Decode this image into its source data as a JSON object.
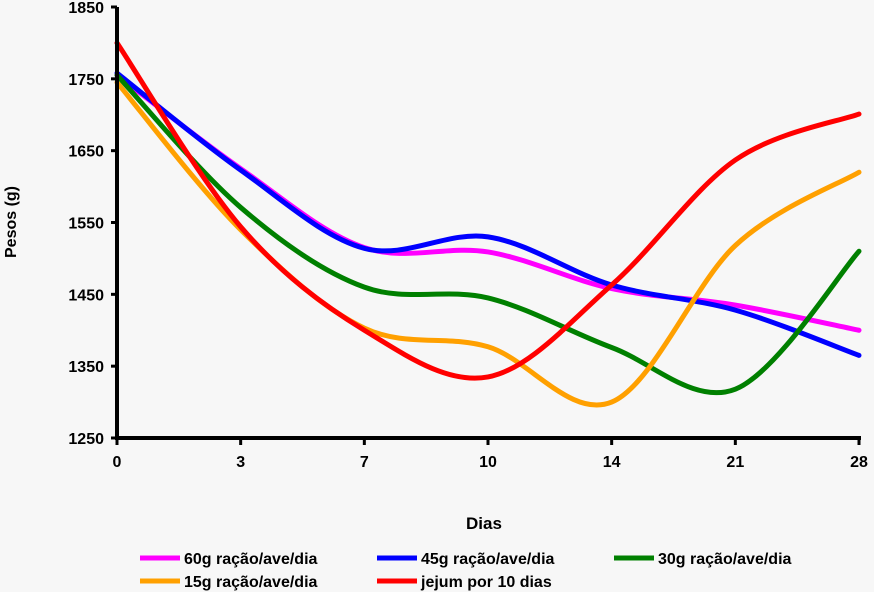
{
  "chart_data": {
    "type": "line",
    "title": "",
    "xlabel": "Dias",
    "ylabel": "Pesos (g)",
    "categories": [
      "0",
      "3",
      "7",
      "10",
      "14",
      "21",
      "28"
    ],
    "ylim": [
      1250,
      1850
    ],
    "yticks": [
      1250,
      1350,
      1450,
      1550,
      1650,
      1750,
      1850
    ],
    "grid": false,
    "smooth": true,
    "legend_position": "bottom",
    "series": [
      {
        "name": "60g ração/ave/dia",
        "color": "#ff00ff",
        "values": [
          1755,
          1625,
          1515,
          1509,
          1458,
          1435,
          1400
        ]
      },
      {
        "name": "45g ração/ave/dia",
        "color": "#0000ff",
        "values": [
          1758,
          1623,
          1514,
          1530,
          1463,
          1428,
          1365
        ]
      },
      {
        "name": "30g ração/ave/dia",
        "color": "#008000",
        "values": [
          1755,
          1571,
          1460,
          1445,
          1376,
          1318,
          1510
        ]
      },
      {
        "name": "15g ração/ave/dia",
        "color": "#ffa000",
        "values": [
          1745,
          1540,
          1403,
          1377,
          1300,
          1518,
          1620
        ]
      },
      {
        "name": "jejum por 10 dias",
        "color": "#ff0000",
        "values": [
          1800,
          1544,
          1400,
          1335,
          1463,
          1637,
          1701
        ]
      }
    ]
  }
}
